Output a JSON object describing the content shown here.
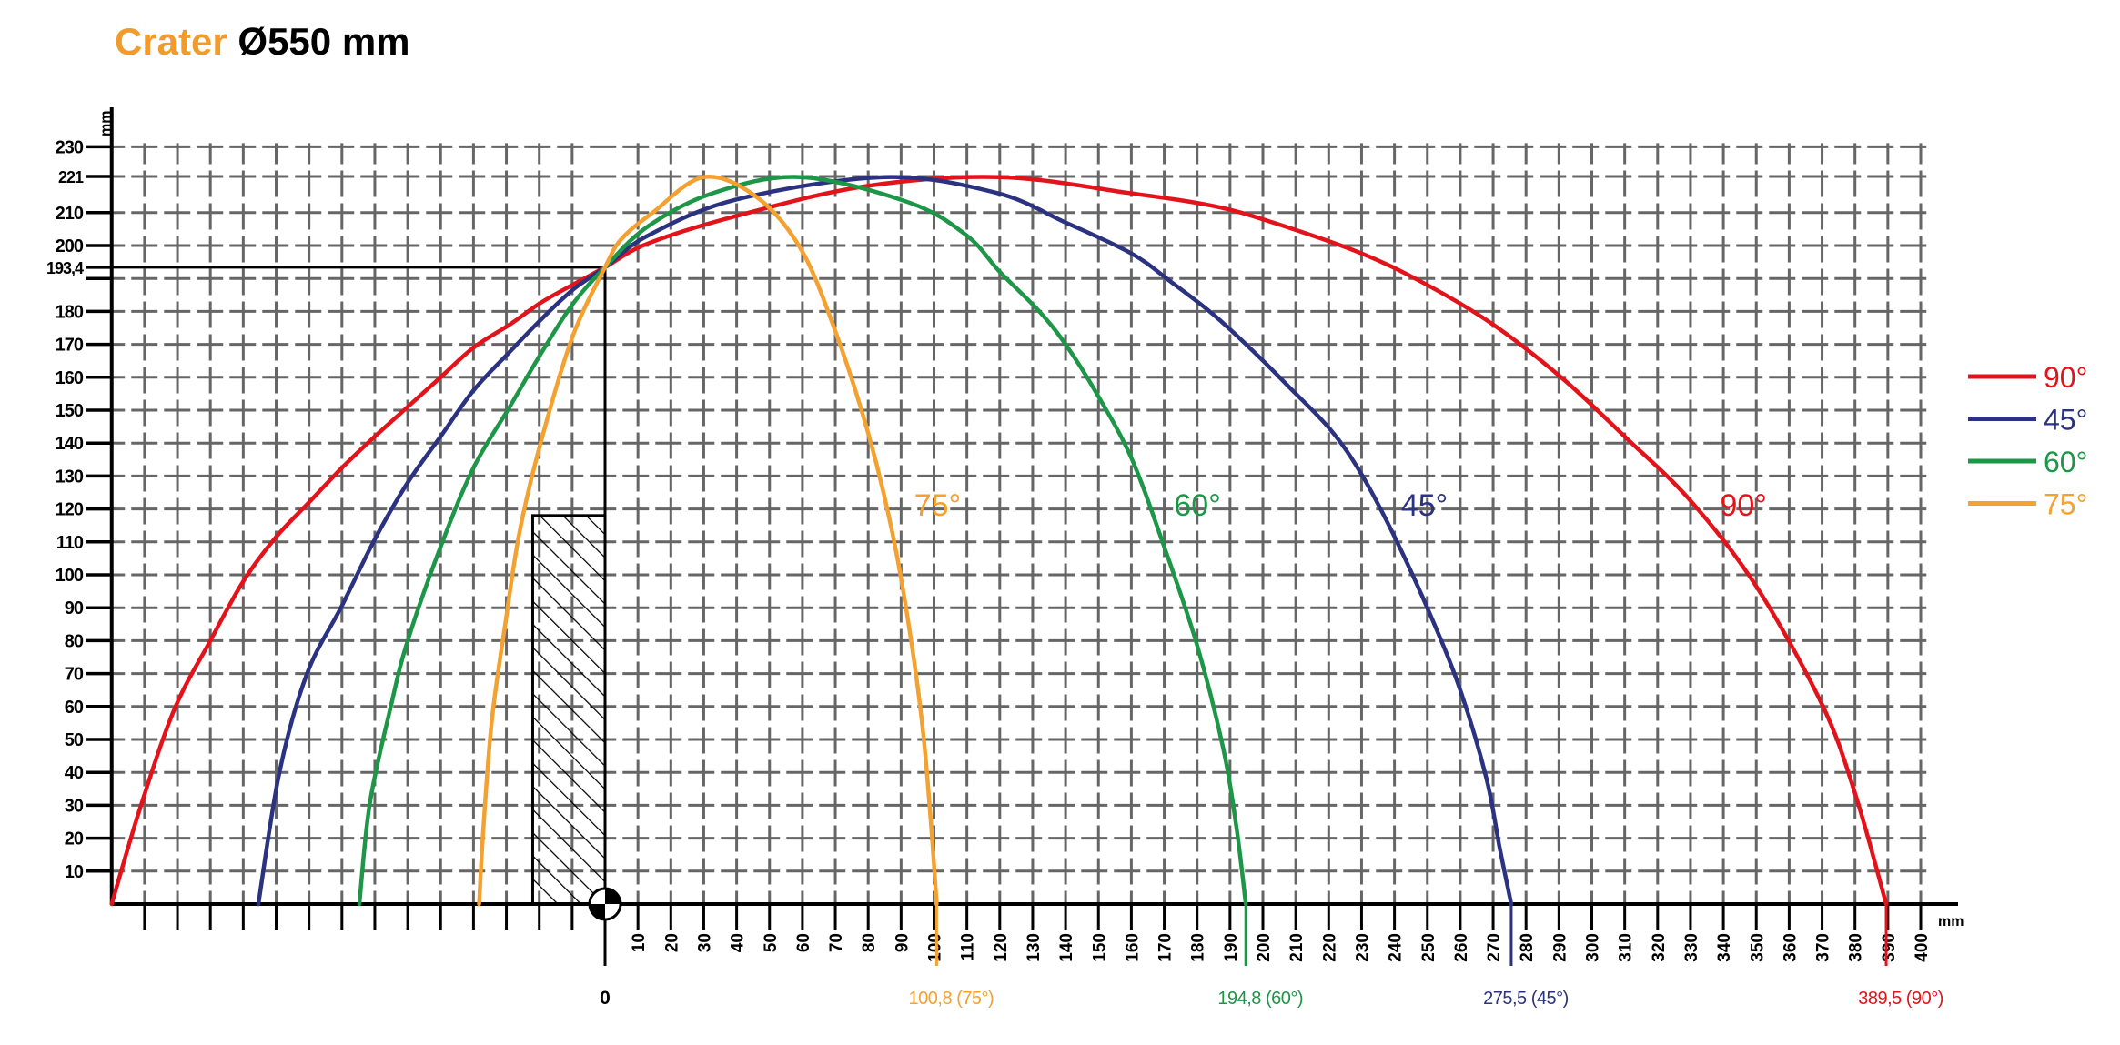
{
  "title": {
    "product": "Crater",
    "size": "Ø550 mm"
  },
  "chart_data": {
    "type": "line",
    "title": "Crater Ø550 mm",
    "xlabel": "mm",
    "ylabel": "mm",
    "xlim": [
      -150,
      400
    ],
    "ylim": [
      0,
      230
    ],
    "x_ticks": [
      10,
      20,
      30,
      40,
      50,
      60,
      70,
      80,
      90,
      100,
      110,
      120,
      130,
      140,
      150,
      160,
      170,
      180,
      190,
      200,
      210,
      220,
      230,
      240,
      250,
      260,
      270,
      280,
      290,
      300,
      310,
      320,
      330,
      340,
      350,
      360,
      370,
      380,
      390,
      400
    ],
    "x_zero_label": "0",
    "y_ticks": [
      {
        "value": 10,
        "label": "10"
      },
      {
        "value": 20,
        "label": "20"
      },
      {
        "value": 30,
        "label": "30"
      },
      {
        "value": 40,
        "label": "40"
      },
      {
        "value": 50,
        "label": "50"
      },
      {
        "value": 60,
        "label": "60"
      },
      {
        "value": 70,
        "label": "70"
      },
      {
        "value": 80,
        "label": "80"
      },
      {
        "value": 90,
        "label": "90"
      },
      {
        "value": 100,
        "label": "100"
      },
      {
        "value": 110,
        "label": "110"
      },
      {
        "value": 120,
        "label": "120"
      },
      {
        "value": 130,
        "label": "130"
      },
      {
        "value": 140,
        "label": "140"
      },
      {
        "value": 150,
        "label": "150"
      },
      {
        "value": 160,
        "label": "160"
      },
      {
        "value": 170,
        "label": "170"
      },
      {
        "value": 180,
        "label": "180"
      },
      {
        "value": 190,
        "label": ""
      },
      {
        "value": 193.4,
        "label": "193,4"
      },
      {
        "value": 200,
        "label": "200"
      },
      {
        "value": 210,
        "label": "210"
      },
      {
        "value": 221,
        "label": "221"
      },
      {
        "value": 230,
        "label": "230"
      }
    ],
    "grid": true,
    "reference_height": 193.4,
    "max_height": 221,
    "obstacle": {
      "x_from": -22,
      "x_to": 0,
      "height": 118
    },
    "legend_position": "right",
    "series": [
      {
        "name": "90°",
        "color": "#e3131b",
        "range_label": "389,5 (90°)",
        "range": 389.5,
        "points": [
          [
            -150,
            0
          ],
          [
            -141.4,
            29
          ],
          [
            -131,
            59
          ],
          [
            -120,
            80
          ],
          [
            -110,
            98
          ],
          [
            -100,
            111.5
          ],
          [
            -90,
            122
          ],
          [
            -80,
            132.5
          ],
          [
            -70,
            142
          ],
          [
            -60,
            151
          ],
          [
            -50,
            160
          ],
          [
            -40,
            169
          ],
          [
            -29,
            176
          ],
          [
            -19.6,
            182.6
          ],
          [
            -10,
            188
          ],
          [
            0,
            193.4
          ],
          [
            13,
            200.6
          ],
          [
            40,
            209
          ],
          [
            79,
            218
          ],
          [
            120,
            220.8
          ],
          [
            159,
            216
          ],
          [
            185,
            212
          ],
          [
            203,
            207
          ],
          [
            230,
            197.6
          ],
          [
            250,
            188
          ],
          [
            270,
            176
          ],
          [
            291,
            159.7
          ],
          [
            310,
            142
          ],
          [
            330,
            122.5
          ],
          [
            350,
            96.5
          ],
          [
            370,
            60.6
          ],
          [
            380,
            33.7
          ],
          [
            389.5,
            0
          ]
        ]
      },
      {
        "name": "45°",
        "color": "#2b3280",
        "range_label": "275,5 (45°)",
        "range": 275.5,
        "points": [
          [
            -105.4,
            0
          ],
          [
            -99,
            40
          ],
          [
            -90.6,
            70
          ],
          [
            -80,
            90.6
          ],
          [
            -70,
            110.8
          ],
          [
            -60,
            128
          ],
          [
            -50,
            142
          ],
          [
            -40,
            156
          ],
          [
            -29,
            167.7
          ],
          [
            -19.6,
            177.4
          ],
          [
            -10,
            186.4
          ],
          [
            0,
            193.4
          ],
          [
            13,
            203
          ],
          [
            40,
            214
          ],
          [
            85,
            220.8
          ],
          [
            119,
            216
          ],
          [
            140,
            207
          ],
          [
            160,
            197.6
          ],
          [
            172,
            189
          ],
          [
            185,
            179
          ],
          [
            198,
            167
          ],
          [
            208,
            157
          ],
          [
            220.6,
            144
          ],
          [
            230,
            130.5
          ],
          [
            240.4,
            110.8
          ],
          [
            251,
            87.6
          ],
          [
            260,
            65
          ],
          [
            268,
            38
          ],
          [
            272,
            17
          ],
          [
            275.5,
            0
          ]
        ]
      },
      {
        "name": "60°",
        "color": "#1d9648",
        "range_label": "194,8 (60°)",
        "range": 194.8,
        "points": [
          [
            -74.7,
            0
          ],
          [
            -71.5,
            30.7
          ],
          [
            -65,
            60.6
          ],
          [
            -60,
            80
          ],
          [
            -50,
            108.5
          ],
          [
            -40,
            132.5
          ],
          [
            -29,
            151
          ],
          [
            -19.6,
            167
          ],
          [
            -10,
            182
          ],
          [
            0,
            193.4
          ],
          [
            13,
            205.8
          ],
          [
            33,
            216
          ],
          [
            59.5,
            220.8
          ],
          [
            92.6,
            213
          ],
          [
            110,
            203
          ],
          [
            120,
            192
          ],
          [
            132,
            180
          ],
          [
            140,
            170
          ],
          [
            149.5,
            155
          ],
          [
            160,
            135.5
          ],
          [
            170,
            108.5
          ],
          [
            180,
            78.6
          ],
          [
            188,
            47
          ],
          [
            192,
            23
          ],
          [
            194.8,
            0
          ]
        ]
      },
      {
        "name": "75°",
        "color": "#f3a130",
        "range_label": "100,8 (75°)",
        "range": 100.8,
        "points": [
          [
            -38.3,
            0
          ],
          [
            -37,
            23
          ],
          [
            -34.4,
            56
          ],
          [
            -30.2,
            86
          ],
          [
            -26,
            113
          ],
          [
            -19.6,
            140
          ],
          [
            -10,
            172
          ],
          [
            0,
            193.4
          ],
          [
            5,
            202
          ],
          [
            14.5,
            210
          ],
          [
            30,
            220.8
          ],
          [
            46,
            214.8
          ],
          [
            59.5,
            199
          ],
          [
            70,
            174
          ],
          [
            80,
            143
          ],
          [
            87.3,
            113
          ],
          [
            92.6,
            83
          ],
          [
            96.6,
            53
          ],
          [
            99.2,
            23
          ],
          [
            100.8,
            0
          ]
        ]
      }
    ],
    "curve_annotations": [
      {
        "text": "75°",
        "series": "75°",
        "x": 94,
        "y": 118
      },
      {
        "text": "60°",
        "series": "60°",
        "x": 173,
        "y": 118
      },
      {
        "text": "45°",
        "series": "45°",
        "x": 242,
        "y": 118
      },
      {
        "text": "90°",
        "series": "90°",
        "x": 339,
        "y": 118
      }
    ]
  }
}
